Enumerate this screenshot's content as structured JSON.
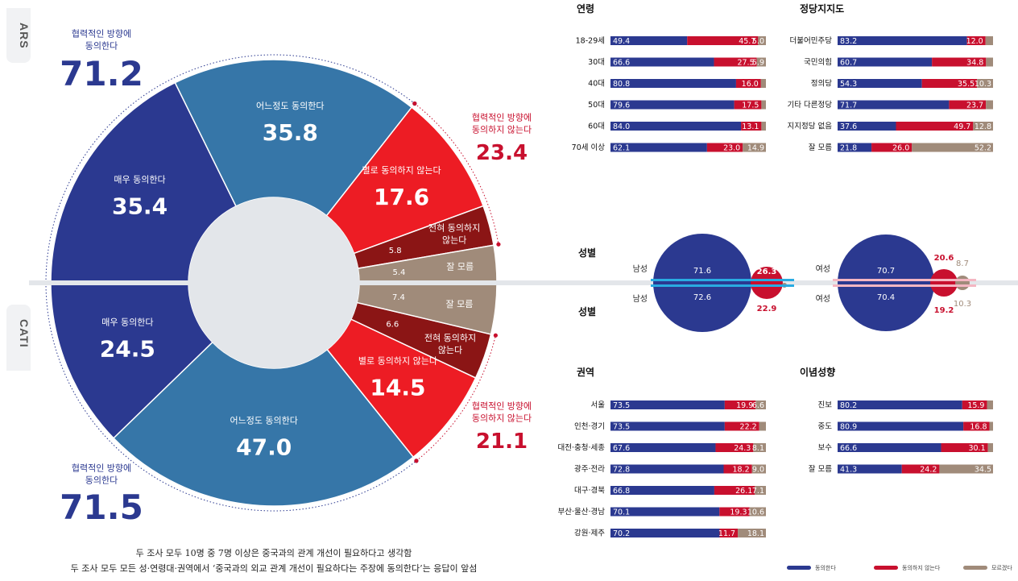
{
  "colors": {
    "agree": "#2b3990",
    "disagree": "#c8102e",
    "unknown": "#a08b7a",
    "ars_mid": "#3676a8",
    "bad_bright": "#ed1c24",
    "bad_dark": "#8b1515",
    "track": "#e3e6ea",
    "male_line": "#29abe2",
    "female_line": "#f4b6c2"
  },
  "sidebar": {
    "ars": "ARS",
    "cati": "CATI"
  },
  "ars": {
    "agree_label": "협력적인 방향에\n동의한다",
    "agree_total": "71.2",
    "disagree_label": "협력적인 방향에\n동의하지 않는다",
    "disagree_total": "23.4",
    "slices": [
      {
        "label": "매우 동의한다",
        "value": 35.4,
        "display": "35.4"
      },
      {
        "label": "어느정도 동의한다",
        "value": 35.8,
        "display": "35.8"
      },
      {
        "label": "별로 동의하지 않는다",
        "value": 17.6,
        "display": "17.6"
      },
      {
        "label": "전혀 동의하지\n않는다",
        "value": 5.8,
        "display": "5.8"
      },
      {
        "label": "잘 모름",
        "value": 5.4,
        "display": "5.4"
      }
    ]
  },
  "cati": {
    "agree_label": "협력적인 방향에\n동의한다",
    "agree_total": "71.5",
    "disagree_label": "협력적인 방향에\n동의하지 않는다",
    "disagree_total": "21.1",
    "slices": [
      {
        "label": "매우 동의한다",
        "value": 24.5,
        "display": "24.5"
      },
      {
        "label": "어느정도 동의한다",
        "value": 47.0,
        "display": "47.0"
      },
      {
        "label": "별로 동의하지 않는다",
        "value": 14.5,
        "display": "14.5"
      },
      {
        "label": "전혀 동의하지\n않는다",
        "value": 6.6,
        "display": "6.6"
      },
      {
        "label": "잘 모름",
        "value": 7.4,
        "display": "7.4"
      }
    ]
  },
  "captions": [
    "두 조사 모두 10명 중 7명 이상은 중국과의 관계 개선이 필요하다고 생각함",
    "두 조사 모두 모든 성·연령대·권역에서 ‘중국과의 외교 관계 개선이 필요하다는 주장에 동의한다’는 응답이 앞섬"
  ],
  "chart_data": [
    {
      "type": "pie",
      "title": "ARS",
      "categories": [
        "매우 동의한다",
        "어느정도 동의한다",
        "별로 동의하지 않는다",
        "전혀 동의하지 않는다",
        "잘 모름"
      ],
      "values": [
        35.4,
        35.8,
        17.6,
        5.8,
        5.4
      ]
    },
    {
      "type": "pie",
      "title": "CATI",
      "categories": [
        "매우 동의한다",
        "어느정도 동의한다",
        "별로 동의하지 않는다",
        "전혀 동의하지 않는다",
        "잘 모름"
      ],
      "values": [
        24.5,
        47.0,
        14.5,
        6.6,
        7.4
      ]
    },
    {
      "type": "bar",
      "title": "연령",
      "categories": [
        "18-29세",
        "30대",
        "40대",
        "50대",
        "60대",
        "70세 이상"
      ],
      "series": [
        {
          "name": "동의한다",
          "values": [
            49.4,
            66.6,
            80.8,
            79.6,
            84.0,
            62.1
          ]
        },
        {
          "name": "동의하지 않는다",
          "values": [
            45.7,
            27.5,
            16.0,
            17.5,
            13.1,
            23.0
          ]
        },
        {
          "name": "모르겠다",
          "values": [
            5.0,
            5.9,
            null,
            null,
            null,
            14.9
          ]
        }
      ]
    },
    {
      "type": "bar",
      "title": "정당지지도",
      "categories": [
        "더불어민주당",
        "국민의힘",
        "정의당",
        "기타 다른정당",
        "지지정당 없음",
        "잘 모름"
      ],
      "series": [
        {
          "name": "동의한다",
          "values": [
            83.2,
            60.7,
            54.3,
            71.7,
            37.6,
            21.8
          ]
        },
        {
          "name": "동의하지 않는다",
          "values": [
            12.0,
            34.8,
            35.5,
            23.7,
            49.7,
            26.0
          ]
        },
        {
          "name": "모르겠다",
          "values": [
            null,
            null,
            10.3,
            null,
            12.8,
            52.2
          ]
        }
      ]
    },
    {
      "type": "bar",
      "title": "권역",
      "categories": [
        "서울",
        "인천·경기",
        "대전·충청·세종",
        "광주·전라",
        "대구·경북",
        "부산·울산·경남",
        "강원·제주"
      ],
      "series": [
        {
          "name": "동의한다",
          "values": [
            73.5,
            73.5,
            67.6,
            72.8,
            66.8,
            70.1,
            70.2
          ]
        },
        {
          "name": "동의하지 않는다",
          "values": [
            19.9,
            22.2,
            24.3,
            18.2,
            26.1,
            19.3,
            11.7
          ]
        },
        {
          "name": "모르겠다",
          "values": [
            6.6,
            null,
            8.1,
            9.0,
            7.1,
            10.6,
            18.1
          ]
        }
      ]
    },
    {
      "type": "bar",
      "title": "이념성향",
      "categories": [
        "진보",
        "중도",
        "보수",
        "잘 모름"
      ],
      "series": [
        {
          "name": "동의한다",
          "values": [
            80.2,
            80.9,
            66.6,
            41.3
          ]
        },
        {
          "name": "동의하지 않는다",
          "values": [
            15.9,
            16.8,
            30.1,
            24.2
          ]
        },
        {
          "name": "모르겠다",
          "values": [
            null,
            null,
            null,
            34.5
          ]
        }
      ]
    },
    {
      "type": "scatter",
      "title": "성별",
      "categories": [
        "남성 ARS",
        "남성 CATI",
        "여성 ARS",
        "여성 CATI"
      ],
      "series": [
        {
          "name": "동의한다",
          "values": [
            71.6,
            72.6,
            70.7,
            70.4
          ]
        },
        {
          "name": "동의하지 않는다",
          "values": [
            26.3,
            22.9,
            20.6,
            19.2
          ]
        },
        {
          "name": "모르겠다",
          "values": [
            null,
            null,
            8.7,
            10.3
          ]
        }
      ]
    }
  ],
  "panels": {
    "age": {
      "title": "연령",
      "rows": [
        {
          "label": "18-29세",
          "a": 49.4,
          "d": 45.7,
          "u": 5.0,
          "a_t": "49.4",
          "d_t": "45.7",
          "u_t": "5.0"
        },
        {
          "label": "30대",
          "a": 66.6,
          "d": 27.5,
          "u": 5.9,
          "a_t": "66.6",
          "d_t": "27.5",
          "u_t": "5.9"
        },
        {
          "label": "40대",
          "a": 80.8,
          "d": 16.0,
          "u": 3.2,
          "a_t": "80.8",
          "d_t": "16.0",
          "u_t": ""
        },
        {
          "label": "50대",
          "a": 79.6,
          "d": 17.5,
          "u": 2.9,
          "a_t": "79.6",
          "d_t": "17.5",
          "u_t": ""
        },
        {
          "label": "60대",
          "a": 84.0,
          "d": 13.1,
          "u": 2.9,
          "a_t": "84.0",
          "d_t": "13.1",
          "u_t": ""
        },
        {
          "label": "70세 이상",
          "a": 62.1,
          "d": 23.0,
          "u": 14.9,
          "a_t": "62.1",
          "d_t": "23.0",
          "u_t": "14.9"
        }
      ]
    },
    "party": {
      "title": "정당지지도",
      "rows": [
        {
          "label": "더불어민주당",
          "a": 83.2,
          "d": 12.0,
          "u": 4.8,
          "a_t": "83.2",
          "d_t": "12.0",
          "u_t": ""
        },
        {
          "label": "국민의힘",
          "a": 60.7,
          "d": 34.8,
          "u": 4.5,
          "a_t": "60.7",
          "d_t": "34.8",
          "u_t": ""
        },
        {
          "label": "정의당",
          "a": 54.3,
          "d": 35.5,
          "u": 10.3,
          "a_t": "54.3",
          "d_t": "35.5",
          "u_t": "10.3"
        },
        {
          "label": "기타 다른정당",
          "a": 71.7,
          "d": 23.7,
          "u": 4.6,
          "a_t": "71.7",
          "d_t": "23.7",
          "u_t": ""
        },
        {
          "label": "지지정당 없음",
          "a": 37.6,
          "d": 49.7,
          "u": 12.8,
          "a_t": "37.6",
          "d_t": "49.7",
          "u_t": "12.8"
        },
        {
          "label": "잘 모름",
          "a": 21.8,
          "d": 26.0,
          "u": 52.2,
          "a_t": "21.8",
          "d_t": "26.0",
          "u_t": "52.2"
        }
      ]
    },
    "region": {
      "title": "권역",
      "rows": [
        {
          "label": "서울",
          "a": 73.5,
          "d": 19.9,
          "u": 6.6,
          "a_t": "73.5",
          "d_t": "19.9",
          "u_t": "6.6"
        },
        {
          "label": "인천·경기",
          "a": 73.5,
          "d": 22.2,
          "u": 4.3,
          "a_t": "73.5",
          "d_t": "22.2",
          "u_t": ""
        },
        {
          "label": "대전·충청·세종",
          "a": 67.6,
          "d": 24.3,
          "u": 8.1,
          "a_t": "67.6",
          "d_t": "24.3",
          "u_t": "8.1"
        },
        {
          "label": "광주·전라",
          "a": 72.8,
          "d": 18.2,
          "u": 9.0,
          "a_t": "72.8",
          "d_t": "18.2",
          "u_t": "9.0"
        },
        {
          "label": "대구·경북",
          "a": 66.8,
          "d": 26.1,
          "u": 7.1,
          "a_t": "66.8",
          "d_t": "26.1",
          "u_t": "7.1"
        },
        {
          "label": "부산·울산·경남",
          "a": 70.1,
          "d": 19.3,
          "u": 10.6,
          "a_t": "70.1",
          "d_t": "19.3",
          "u_t": "10.6"
        },
        {
          "label": "강원·제주",
          "a": 70.2,
          "d": 11.7,
          "u": 18.1,
          "a_t": "70.2",
          "d_t": "11.7",
          "u_t": "18.1"
        }
      ]
    },
    "ideology": {
      "title": "이념성향",
      "rows": [
        {
          "label": "진보",
          "a": 80.2,
          "d": 15.9,
          "u": 3.9,
          "a_t": "80.2",
          "d_t": "15.9",
          "u_t": ""
        },
        {
          "label": "중도",
          "a": 80.9,
          "d": 16.8,
          "u": 2.3,
          "a_t": "80.9",
          "d_t": "16.8",
          "u_t": ""
        },
        {
          "label": "보수",
          "a": 66.6,
          "d": 30.1,
          "u": 3.3,
          "a_t": "66.6",
          "d_t": "30.1",
          "u_t": ""
        },
        {
          "label": "잘 모름",
          "a": 41.3,
          "d": 24.2,
          "u": 34.5,
          "a_t": "41.3",
          "d_t": "24.2",
          "u_t": "34.5"
        }
      ]
    }
  },
  "gender": {
    "title_top": "성별",
    "title_bottom": "성별",
    "male": {
      "label": "남성",
      "ars_agree": "71.6",
      "ars_disagree": "26.3",
      "cati_agree": "72.6",
      "cati_disagree": "22.9"
    },
    "female": {
      "label": "여성",
      "ars_agree": "70.7",
      "ars_disagree": "20.6",
      "ars_unknown": "8.7",
      "cati_agree": "70.4",
      "cati_disagree": "19.2",
      "cati_unknown": "10.3"
    }
  },
  "legend": {
    "agree": "동의한다",
    "disagree": "동의하지 않는다",
    "unknown": "모르겠다"
  }
}
